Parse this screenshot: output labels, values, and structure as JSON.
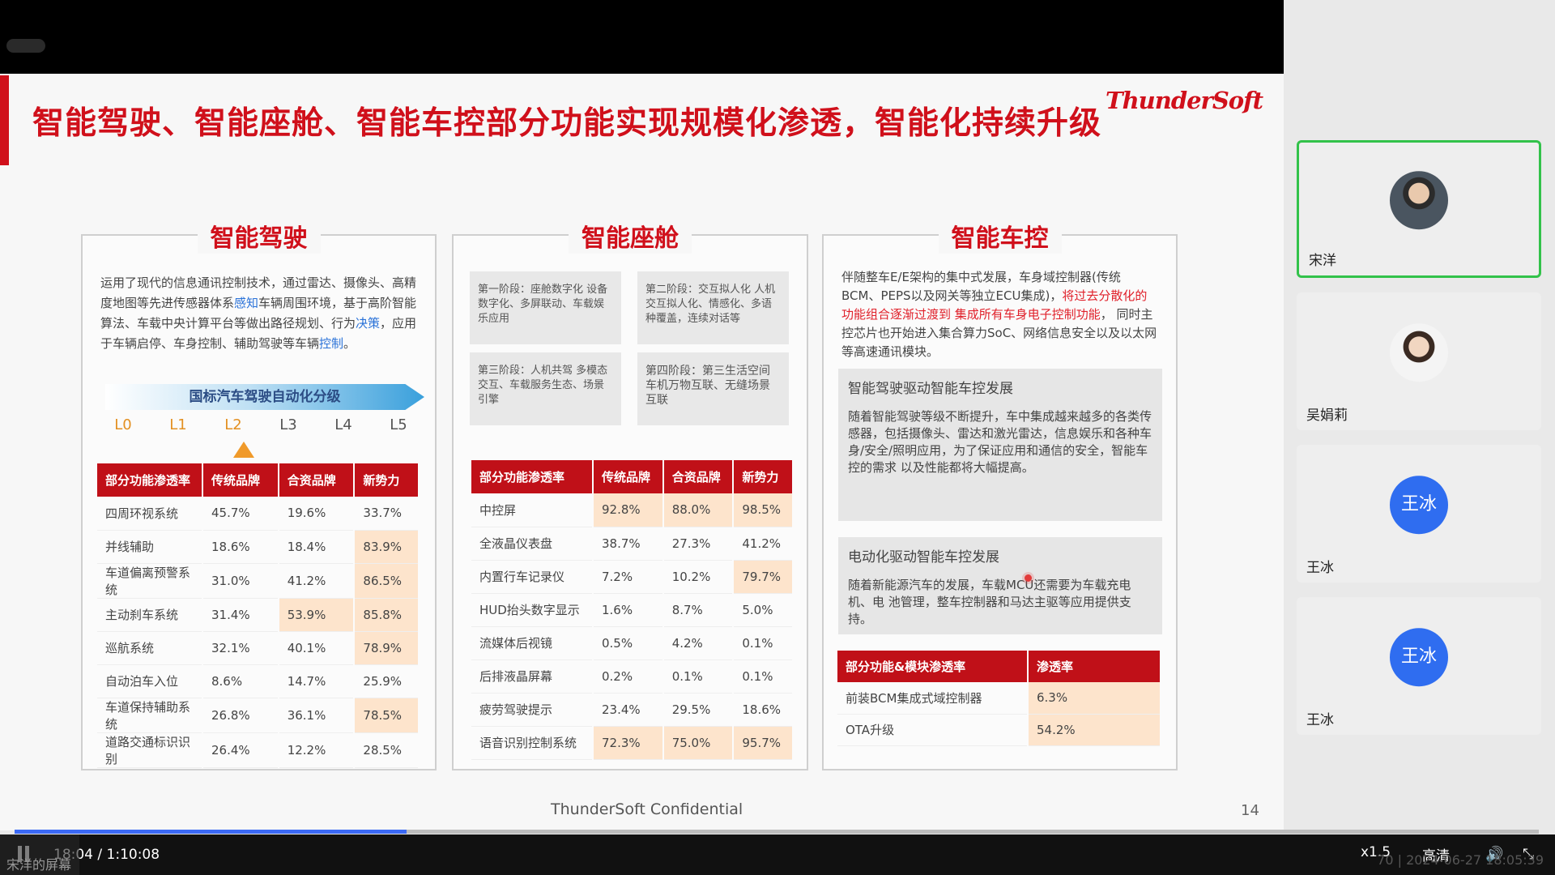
{
  "slide": {
    "title": "智能驾驶、智能座舱、智能车控部分功能实现规模化渗透，智能化持续升级",
    "logo": "ThunderSoft",
    "footer": "ThunderSoft Confidential",
    "page_number": "14",
    "colors": {
      "brand_red": "#d0101b",
      "table_header": "#c01018",
      "highlight": "#fde4cc"
    }
  },
  "driving": {
    "title": "智能驾驶",
    "desc_pre": "运用了现代的信息通讯控制技术，通过雷达、摄像头、高精度地图等先进传感器体系",
    "desc_hl1": "感知",
    "desc_mid1": "车辆周围环境，基于高阶智能算法、车载中央计算平台等做出路径规划、行为",
    "desc_hl2": "决策",
    "desc_mid2": "，应用于车辆启停、车身控制、辅助驾驶等车辆",
    "desc_hl3": "控制",
    "desc_end": "。",
    "band_label": "国标汽车驾驶自动化分级",
    "levels": [
      "L0",
      "L1",
      "L2",
      "L3",
      "L4",
      "L5"
    ],
    "marker_level": "L2",
    "headers": [
      "部分功能渗透率",
      "传统品牌",
      "合资品牌",
      "新势力"
    ],
    "rows": [
      [
        "四周环视系统",
        "45.7%",
        "19.6%",
        "33.7%"
      ],
      [
        "并线辅助",
        "18.6%",
        "18.4%",
        "83.9%"
      ],
      [
        "车道偏离预警系统",
        "31.0%",
        "41.2%",
        "86.5%"
      ],
      [
        "主动刹车系统",
        "31.4%",
        "53.9%",
        "85.8%"
      ],
      [
        "巡航系统",
        "32.1%",
        "40.1%",
        "78.9%"
      ],
      [
        "自动泊车入位",
        "8.6%",
        "14.7%",
        "25.9%"
      ],
      [
        "车道保持辅助系统",
        "26.8%",
        "36.1%",
        "78.5%"
      ],
      [
        "道路交通标识识别",
        "26.4%",
        "12.2%",
        "28.5%"
      ]
    ]
  },
  "cockpit": {
    "title": "智能座舱",
    "stages": [
      "第一阶段：座舱数字化 设备数字化、多屏联动、车载娱乐应用",
      "第二阶段：交互拟人化 人机交互拟人化、情感化、多语种覆盖，连续对话等",
      "第三阶段：人机共驾 多模态交互、车载服务生态、场景引擎",
      "第四阶段：第三生活空间车机万物互联、无缝场景互联"
    ],
    "headers": [
      "部分功能渗透率",
      "传统品牌",
      "合资品牌",
      "新势力"
    ],
    "rows": [
      [
        "中控屏",
        "92.8%",
        "88.0%",
        "98.5%"
      ],
      [
        "全液晶仪表盘",
        "38.7%",
        "27.3%",
        "41.2%"
      ],
      [
        "内置行车记录仪",
        "7.2%",
        "10.2%",
        "79.7%"
      ],
      [
        "HUD抬头数字显示",
        "1.6%",
        "8.7%",
        "5.0%"
      ],
      [
        "流媒体后视镜",
        "0.5%",
        "4.2%",
        "0.1%"
      ],
      [
        "后排液晶屏幕",
        "0.2%",
        "0.1%",
        "0.1%"
      ],
      [
        "疲劳驾驶提示",
        "23.4%",
        "29.5%",
        "18.6%"
      ],
      [
        "语音识别控制系统",
        "72.3%",
        "75.0%",
        "95.7%"
      ]
    ]
  },
  "control": {
    "title": "智能车控",
    "desc_pre": "伴随整车E/E架构的集中式发展，车身域控制器(传统BCM、PEPS以及网关等独立ECU集成)，",
    "desc_red": "将过去分散化的功能组合逐渐过渡到 集成所有车身电子控制功能",
    "desc_end": "， 同时主控芯片也开始进入集合算力SoC、网络信息安全以及以太网等高速通讯模块。",
    "sub1_title": "智能驾驶驱动智能车控发展",
    "sub1_text": "随着智能驾驶等级不断提升，车中集成越来越多的各类传感器，包括摄像头、雷达和激光雷达，信息娱乐和各种车身/安全/照明应用，为了保证应用和通信的安全，智能车控的需求 以及性能都将大幅提高。",
    "sub2_title": "电动化驱动智能车控发展",
    "sub2_text": "随着新能源汽车的发展，车载MCU还需要为车载充电机、电 池管理，整车控制器和马达主驱等应用提供支持。",
    "headers": [
      "部分功能&模块渗透率",
      "渗透率"
    ],
    "rows": [
      [
        "前装BCM集成式域控制器",
        "6.3%"
      ],
      [
        "OTA升级",
        "54.2%"
      ]
    ]
  },
  "participants": [
    {
      "name": "宋洋",
      "type": "photo-male",
      "active": true
    },
    {
      "name": "吴娟莉",
      "type": "photo-female",
      "active": false
    },
    {
      "name": "王冰",
      "type": "initials",
      "initials": "王冰",
      "active": false
    },
    {
      "name": "王冰",
      "type": "initials",
      "initials": "王冰",
      "active": false
    }
  ],
  "player": {
    "time": "18:04 / 1:10:08",
    "progress": 0.257,
    "speed": "x1.5",
    "quality": "高清",
    "screen_label": "宋洋的屏幕",
    "stamp": "70 | 2024-06-27 18:05:39"
  }
}
